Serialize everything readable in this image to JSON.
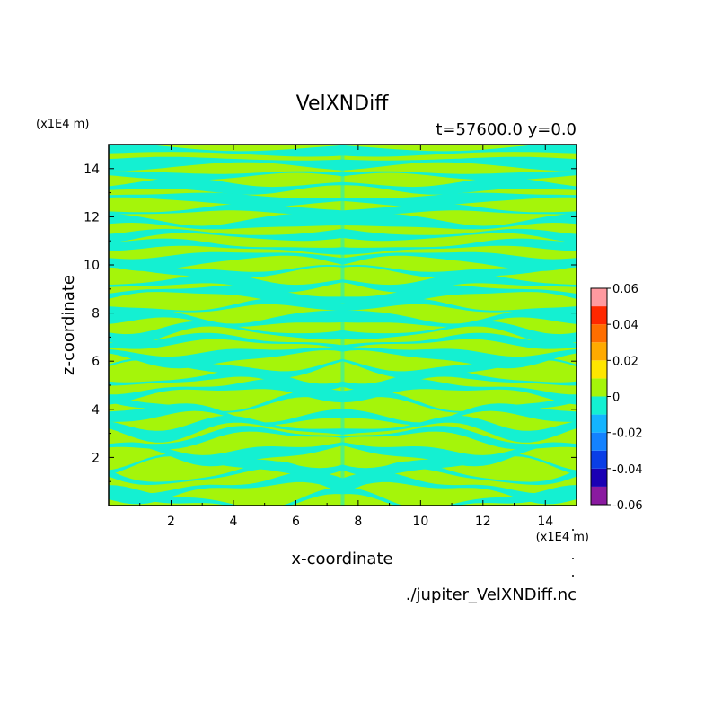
{
  "chart_data": {
    "type": "heatmap",
    "title": "VelXNDiff",
    "subtitle": "t=57600.0 y=0.0",
    "xlabel": "x-coordinate",
    "ylabel": "z-coordinate",
    "x_scale_label": "(x1E4 m)",
    "y_scale_label": "(x1E4 m)",
    "source_file": "./jupiter_VelXNDiff.nc",
    "xlim": [
      0,
      15
    ],
    "ylim": [
      0,
      15
    ],
    "x_ticks": [
      2,
      4,
      6,
      8,
      10,
      12,
      14
    ],
    "y_ticks": [
      2,
      4,
      6,
      8,
      10,
      12,
      14
    ],
    "x_tick_labels": [
      "2",
      "4",
      "6",
      "8",
      "10",
      "12",
      "14"
    ],
    "y_tick_labels": [
      "2",
      "4",
      "6",
      "8",
      "10",
      "12",
      "14"
    ],
    "colorbar": {
      "levels": [
        -0.06,
        -0.05,
        -0.04,
        -0.03,
        -0.02,
        -0.01,
        0,
        0.01,
        0.02,
        0.03,
        0.04,
        0.05,
        0.06
      ],
      "colors": [
        "#8a1aa0",
        "#1a00b4",
        "#0a3ee6",
        "#1482ff",
        "#14b4ff",
        "#14f0d2",
        "#a5f50a",
        "#ffe600",
        "#ffaa00",
        "#ff6e00",
        "#ff2800",
        "#ff9aa0"
      ],
      "tick_values": [
        0.06,
        0.04,
        0.02,
        0,
        -0.02,
        -0.04,
        -0.06
      ],
      "tick_labels": [
        "0.06",
        "0.04",
        "0.02",
        "0",
        "-0.02",
        "-0.04",
        "-0.06"
      ]
    },
    "field": {
      "description_levels": [
        "-0.01 to 0",
        "0 to 0.01"
      ],
      "band_colors": {
        "negative": "#14f0d2",
        "positive": "#a5f50a"
      },
      "symmetry": "mirror about x=7.5",
      "centerline_x": 7.5
    }
  }
}
